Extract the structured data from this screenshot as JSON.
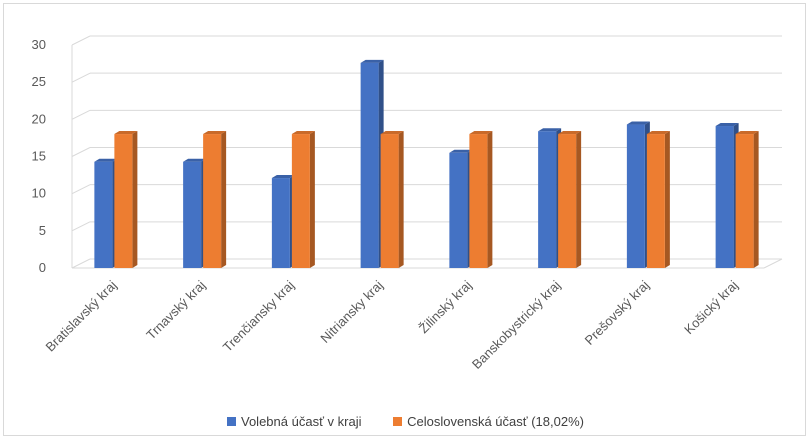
{
  "chart_data": {
    "type": "bar",
    "style": "3d-clustered-column",
    "categories": [
      "Bratislavský kraj",
      "Trnavský kraj",
      "Trenčiansky kraj",
      "Nitriansky kraj",
      "Žilinský kraj",
      "Banskobystrický kraj",
      "Prešovský kraj",
      "Košický kraj"
    ],
    "series": [
      {
        "name": "Volebná účasť v kraji",
        "color": "#4472c4",
        "values": [
          14.3,
          14.3,
          12.1,
          27.6,
          15.5,
          18.4,
          19.3,
          19.1
        ]
      },
      {
        "name": "Celoslovenská účasť (18,02%)",
        "color": "#ed7d31",
        "values": [
          18.02,
          18.02,
          18.02,
          18.02,
          18.02,
          18.02,
          18.02,
          18.02
        ]
      }
    ],
    "y_ticks": [
      "0",
      "5",
      "10",
      "15",
      "20",
      "25",
      "30"
    ],
    "ylim": [
      0,
      30
    ],
    "grid": true,
    "legend_position": "bottom"
  }
}
